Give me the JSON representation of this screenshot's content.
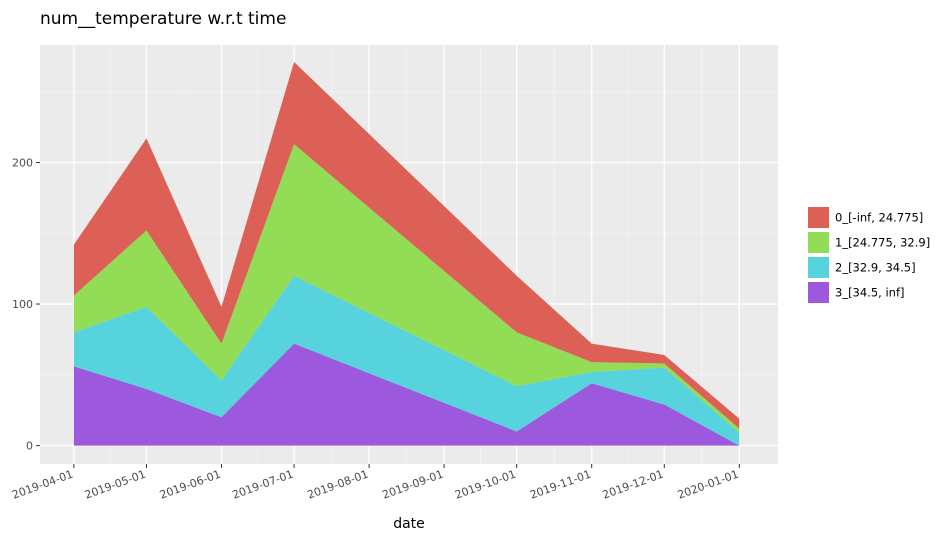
{
  "chart_data": {
    "type": "area",
    "stacked": true,
    "title": "num__temperature w.r.t time",
    "xlabel": "date",
    "ylabel": "",
    "x": [
      "2019-04-01",
      "2019-05-01",
      "2019-06-01",
      "2019-07-01",
      "2019-10-01",
      "2019-11-01",
      "2019-12-01",
      "2020-01-01"
    ],
    "series": [
      {
        "name": "3_[34.5, inf]",
        "color": "#9d59dd",
        "values": [
          56,
          40,
          20,
          72,
          10,
          44,
          29,
          0
        ]
      },
      {
        "name": "2_[32.9, 34.5]",
        "color": "#56d3dc",
        "values": [
          24,
          58,
          26,
          48,
          32,
          8,
          26,
          9
        ]
      },
      {
        "name": "1_[24.775, 32.9]",
        "color": "#92dc56",
        "values": [
          26,
          54,
          26,
          93,
          38,
          7,
          3,
          3
        ]
      },
      {
        "name": "0_[-inf, 24.775]",
        "color": "#dc6056",
        "values": [
          36,
          65,
          26,
          58,
          40,
          13,
          6,
          7
        ]
      }
    ],
    "ylim": [
      -13,
      283
    ],
    "yticks": [
      0,
      100,
      200
    ],
    "xlim": [
      "2019-03-18",
      "2020-01-17"
    ],
    "xticks": [
      "2019-04-01",
      "2019-05-01",
      "2019-06-01",
      "2019-07-01",
      "2019-08-01",
      "2019-09-01",
      "2019-10-01",
      "2019-11-01",
      "2019-12-01",
      "2020-01-01"
    ],
    "grid": true,
    "legend_position": "right"
  }
}
